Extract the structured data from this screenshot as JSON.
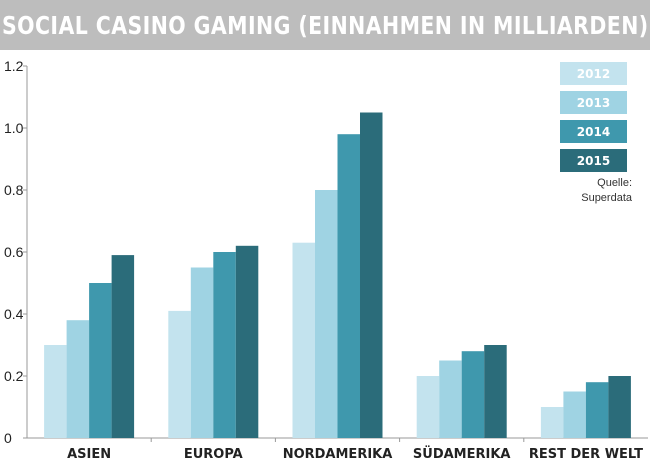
{
  "chart_data": {
    "type": "bar",
    "title": "SOCIAL CASINO GAMING (EINNAHMEN IN MILLIARDEN)",
    "xlabel": "",
    "ylabel": "",
    "ylim": [
      0,
      1.2
    ],
    "yticks": [
      "0",
      "0.2",
      "0.4",
      "0.6",
      "0.8",
      "1.0",
      "1.2"
    ],
    "categories": [
      "ASIEN",
      "EUROPA",
      "NORDAMERIKA",
      "SÜDAMERIKA",
      "REST DER WELT"
    ],
    "series": [
      {
        "name": "2012",
        "color": "#c3e3ee",
        "values": [
          0.3,
          0.41,
          0.63,
          0.2,
          0.1
        ]
      },
      {
        "name": "2013",
        "color": "#9fd3e3",
        "values": [
          0.38,
          0.55,
          0.8,
          0.25,
          0.15
        ]
      },
      {
        "name": "2014",
        "color": "#3f98ad",
        "values": [
          0.5,
          0.6,
          0.98,
          0.28,
          0.18
        ]
      },
      {
        "name": "2015",
        "color": "#2b6c7a",
        "values": [
          0.59,
          0.62,
          1.05,
          0.3,
          0.2
        ]
      }
    ],
    "legend_position": "top-right",
    "grid": false
  },
  "source": {
    "line1": "Quelle:",
    "line2": "Superdata"
  }
}
